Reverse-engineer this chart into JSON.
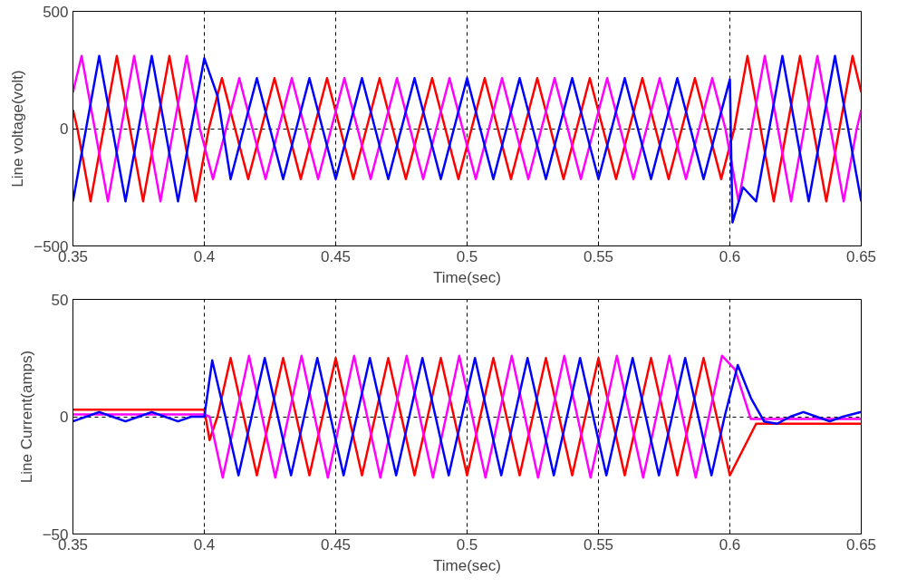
{
  "chart_data": [
    {
      "type": "line",
      "xlabel": "Time(sec)",
      "ylabel": "Line voltage(volt)",
      "xlim": [
        0.35,
        0.65
      ],
      "xticks": [
        0.35,
        0.4,
        0.45,
        0.5,
        0.55,
        0.6,
        0.65
      ],
      "ylim": [
        -500,
        500
      ],
      "yticks": [
        -500,
        0,
        500
      ],
      "grid": true,
      "series": [
        {
          "color": "#ff0000",
          "x": [
            0.35,
            0.3517,
            0.3567,
            0.3617,
            0.3667,
            0.3717,
            0.3767,
            0.3817,
            0.3867,
            0.3917,
            0.3967,
            0.4017,
            0.4067,
            0.4117,
            0.4167,
            0.4217,
            0.4267,
            0.4317,
            0.4367,
            0.4417,
            0.4467,
            0.4517,
            0.4567,
            0.4617,
            0.4667,
            0.4717,
            0.4767,
            0.4817,
            0.4867,
            0.4917,
            0.4967,
            0.5017,
            0.5067,
            0.5117,
            0.5167,
            0.5217,
            0.5267,
            0.5317,
            0.5367,
            0.5417,
            0.5467,
            0.5517,
            0.5567,
            0.5617,
            0.5667,
            0.5717,
            0.5767,
            0.5817,
            0.5867,
            0.5917,
            0.5967,
            0.6017,
            0.6067,
            0.6117,
            0.6167,
            0.6217,
            0.6267,
            0.6317,
            0.6367,
            0.6417,
            0.6467,
            0.65
          ],
          "values": [
            80,
            0,
            -310,
            0,
            310,
            0,
            -310,
            0,
            310,
            0,
            -310,
            0,
            215,
            0,
            -215,
            0,
            215,
            0,
            -215,
            0,
            215,
            0,
            -215,
            0,
            215,
            0,
            -215,
            0,
            215,
            0,
            -215,
            0,
            215,
            0,
            -215,
            0,
            215,
            0,
            -215,
            0,
            215,
            0,
            -215,
            0,
            215,
            0,
            -215,
            0,
            215,
            0,
            -215,
            0,
            310,
            0,
            -310,
            0,
            310,
            0,
            -310,
            0,
            310,
            155
          ]
        },
        {
          "color": "#ff00ff",
          "x": [
            0.35,
            0.3533,
            0.3583,
            0.3633,
            0.3683,
            0.3733,
            0.3783,
            0.3833,
            0.3883,
            0.3933,
            0.3983,
            0.4033,
            0.4083,
            0.4133,
            0.4183,
            0.4233,
            0.4283,
            0.4333,
            0.4383,
            0.4433,
            0.4483,
            0.4533,
            0.4583,
            0.4633,
            0.4683,
            0.4733,
            0.4783,
            0.4833,
            0.4883,
            0.4933,
            0.4983,
            0.5033,
            0.5083,
            0.5133,
            0.5183,
            0.5233,
            0.5283,
            0.5333,
            0.5383,
            0.5433,
            0.5483,
            0.5533,
            0.5583,
            0.5633,
            0.5683,
            0.5733,
            0.5783,
            0.5833,
            0.5883,
            0.5933,
            0.5983,
            0.6033,
            0.6083,
            0.6133,
            0.6183,
            0.6233,
            0.6283,
            0.6333,
            0.6383,
            0.6433,
            0.6483,
            0.65
          ],
          "values": [
            155,
            310,
            0,
            -310,
            0,
            310,
            0,
            -310,
            0,
            310,
            0,
            -215,
            0,
            215,
            0,
            -215,
            0,
            215,
            0,
            -215,
            0,
            215,
            0,
            -215,
            0,
            215,
            0,
            -215,
            0,
            215,
            0,
            -215,
            0,
            215,
            0,
            -215,
            0,
            215,
            0,
            -215,
            0,
            215,
            0,
            -215,
            0,
            215,
            0,
            -215,
            0,
            215,
            0,
            -310,
            0,
            310,
            0,
            -310,
            0,
            310,
            0,
            -310,
            0,
            80
          ]
        },
        {
          "color": "#0000ff",
          "x": [
            0.35,
            0.355,
            0.36,
            0.365,
            0.37,
            0.375,
            0.38,
            0.385,
            0.39,
            0.395,
            0.4,
            0.405,
            0.41,
            0.415,
            0.42,
            0.425,
            0.43,
            0.435,
            0.44,
            0.445,
            0.45,
            0.455,
            0.46,
            0.465,
            0.47,
            0.475,
            0.48,
            0.485,
            0.49,
            0.495,
            0.5,
            0.505,
            0.51,
            0.515,
            0.52,
            0.525,
            0.53,
            0.535,
            0.54,
            0.545,
            0.55,
            0.555,
            0.56,
            0.565,
            0.57,
            0.575,
            0.58,
            0.585,
            0.59,
            0.595,
            0.6,
            0.601,
            0.605,
            0.61,
            0.615,
            0.62,
            0.625,
            0.63,
            0.635,
            0.64,
            0.645,
            0.65
          ],
          "values": [
            -310,
            0,
            310,
            0,
            -310,
            0,
            310,
            0,
            -310,
            0,
            300,
            140,
            -215,
            0,
            215,
            0,
            -215,
            0,
            215,
            0,
            -215,
            0,
            215,
            0,
            -215,
            0,
            215,
            0,
            -215,
            0,
            215,
            0,
            -215,
            0,
            215,
            0,
            -215,
            0,
            215,
            0,
            -215,
            0,
            215,
            0,
            -215,
            0,
            215,
            0,
            -215,
            0,
            210,
            -400,
            -250,
            -310,
            0,
            310,
            0,
            -310,
            0,
            310,
            0,
            -310
          ]
        }
      ]
    },
    {
      "type": "line",
      "xlabel": "Time(sec)",
      "ylabel": "Line Current(amps)",
      "xlim": [
        0.35,
        0.65
      ],
      "xticks": [
        0.35,
        0.4,
        0.45,
        0.5,
        0.55,
        0.6,
        0.65
      ],
      "ylim": [
        -50,
        50
      ],
      "yticks": [
        -50,
        0,
        50
      ],
      "grid": true,
      "series": [
        {
          "color": "#ff0000",
          "x": [
            0.35,
            0.4,
            0.402,
            0.405,
            0.41,
            0.415,
            0.42,
            0.425,
            0.43,
            0.435,
            0.44,
            0.445,
            0.45,
            0.455,
            0.46,
            0.465,
            0.47,
            0.475,
            0.48,
            0.485,
            0.49,
            0.495,
            0.5,
            0.505,
            0.51,
            0.515,
            0.52,
            0.525,
            0.53,
            0.535,
            0.54,
            0.545,
            0.55,
            0.555,
            0.56,
            0.565,
            0.57,
            0.575,
            0.58,
            0.585,
            0.59,
            0.595,
            0.6,
            0.61,
            0.65
          ],
          "values": [
            3,
            3,
            -10,
            0,
            25,
            0,
            -25,
            0,
            25,
            0,
            -25,
            0,
            25,
            0,
            -25,
            0,
            25,
            0,
            -25,
            0,
            25,
            0,
            -25,
            0,
            25,
            0,
            -25,
            0,
            25,
            0,
            -25,
            0,
            25,
            0,
            -25,
            0,
            25,
            0,
            -25,
            0,
            25,
            0,
            -25,
            -3,
            -3
          ]
        },
        {
          "color": "#ff00ff",
          "x": [
            0.35,
            0.4,
            0.402,
            0.407,
            0.412,
            0.417,
            0.422,
            0.427,
            0.432,
            0.437,
            0.442,
            0.447,
            0.452,
            0.457,
            0.462,
            0.467,
            0.472,
            0.477,
            0.482,
            0.487,
            0.492,
            0.497,
            0.502,
            0.507,
            0.512,
            0.517,
            0.522,
            0.527,
            0.532,
            0.537,
            0.542,
            0.547,
            0.552,
            0.557,
            0.562,
            0.567,
            0.572,
            0.577,
            0.582,
            0.587,
            0.592,
            0.597,
            0.602,
            0.608,
            0.65
          ],
          "values": [
            1,
            1,
            0,
            -26,
            0,
            26,
            0,
            -26,
            0,
            26,
            0,
            -26,
            0,
            26,
            0,
            -26,
            0,
            26,
            0,
            -26,
            0,
            26,
            0,
            -26,
            0,
            26,
            0,
            -26,
            0,
            26,
            0,
            -26,
            0,
            26,
            0,
            -26,
            0,
            26,
            0,
            -26,
            0,
            26,
            20,
            -1,
            -1
          ]
        },
        {
          "color": "#0000ff",
          "x": [
            0.35,
            0.355,
            0.36,
            0.365,
            0.37,
            0.375,
            0.38,
            0.385,
            0.39,
            0.395,
            0.4,
            0.403,
            0.408,
            0.413,
            0.418,
            0.423,
            0.428,
            0.433,
            0.438,
            0.443,
            0.448,
            0.453,
            0.458,
            0.463,
            0.468,
            0.473,
            0.478,
            0.483,
            0.488,
            0.493,
            0.498,
            0.503,
            0.508,
            0.513,
            0.518,
            0.523,
            0.528,
            0.533,
            0.538,
            0.543,
            0.548,
            0.553,
            0.558,
            0.563,
            0.568,
            0.573,
            0.578,
            0.583,
            0.588,
            0.593,
            0.598,
            0.603,
            0.608,
            0.613,
            0.618,
            0.623,
            0.628,
            0.633,
            0.638,
            0.643,
            0.65
          ],
          "values": [
            -2,
            0,
            2,
            0,
            -2,
            0,
            2,
            0,
            -2,
            0,
            0,
            24,
            0,
            -25,
            0,
            25,
            0,
            -25,
            0,
            25,
            0,
            -25,
            0,
            25,
            0,
            -25,
            0,
            25,
            0,
            -25,
            0,
            25,
            0,
            -25,
            0,
            25,
            0,
            -25,
            0,
            25,
            0,
            -25,
            0,
            25,
            0,
            -25,
            0,
            25,
            0,
            -25,
            0,
            22,
            8,
            -2,
            -3,
            0,
            2,
            0,
            -2,
            0,
            2
          ]
        }
      ]
    }
  ]
}
